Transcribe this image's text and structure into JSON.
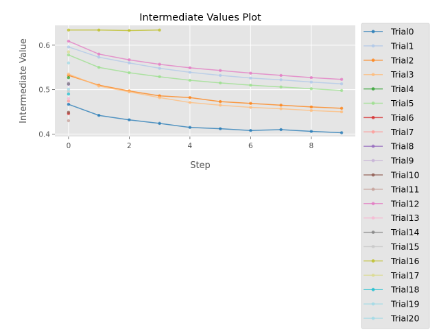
{
  "chart_data": {
    "type": "line",
    "title": "Intermediate Values Plot",
    "xlabel": "Step",
    "ylabel": "Intermediate Value",
    "xlim": [
      -0.45,
      9.45
    ],
    "ylim": [
      0.3945,
      0.6445
    ],
    "xticks": [
      0,
      2,
      4,
      6,
      8
    ],
    "yticks": [
      0.4,
      0.5,
      0.6
    ],
    "ytick_labels": [
      "0.4",
      "0.5",
      "0.6"
    ],
    "grid": true,
    "legend_position": "right, outside plot area",
    "background": "#e5e5e5",
    "series": [
      {
        "name": "Trial0",
        "color": "#1f77b4",
        "x": [
          0,
          1,
          2,
          3,
          4,
          5,
          6,
          7,
          8,
          9
        ],
        "y": [
          0.467,
          0.442,
          0.432,
          0.424,
          0.415,
          0.412,
          0.408,
          0.41,
          0.406,
          0.403
        ]
      },
      {
        "name": "Trial1",
        "color": "#aec7e8",
        "x": [
          0,
          1,
          2,
          3,
          4,
          5,
          6,
          7,
          8,
          9
        ],
        "y": [
          0.596,
          0.573,
          0.56,
          0.548,
          0.539,
          0.532,
          0.526,
          0.522,
          0.517,
          0.513
        ]
      },
      {
        "name": "Trial2",
        "color": "#ff7f0e",
        "x": [
          0,
          1,
          2,
          3,
          4,
          5,
          6,
          7,
          8,
          9
        ],
        "y": [
          0.532,
          0.51,
          0.497,
          0.486,
          0.482,
          0.473,
          0.469,
          0.465,
          0.461,
          0.458
        ]
      },
      {
        "name": "Trial3",
        "color": "#ffbb78",
        "x": [
          0,
          1,
          2,
          3,
          4,
          5,
          6,
          7,
          8,
          9
        ],
        "y": [
          0.535,
          0.508,
          0.495,
          0.482,
          0.471,
          0.465,
          0.46,
          0.457,
          0.453,
          0.45
        ]
      },
      {
        "name": "Trial4",
        "color": "#2ca02c",
        "x": [
          0
        ],
        "y": [
          0.527
        ]
      },
      {
        "name": "Trial5",
        "color": "#98df8a",
        "x": [
          0,
          1,
          2,
          3,
          4,
          5,
          6,
          7,
          8,
          9
        ],
        "y": [
          0.578,
          0.55,
          0.538,
          0.529,
          0.521,
          0.515,
          0.51,
          0.506,
          0.502,
          0.498
        ]
      },
      {
        "name": "Trial6",
        "color": "#d62728",
        "x": [
          0
        ],
        "y": [
          0.446
        ]
      },
      {
        "name": "Trial7",
        "color": "#ff9896",
        "x": [
          0
        ],
        "y": [
          0.474
        ]
      },
      {
        "name": "Trial8",
        "color": "#9467bd",
        "x": [
          0
        ],
        "y": [
          0.512
        ]
      },
      {
        "name": "Trial9",
        "color": "#c5b0d5",
        "x": [
          0
        ],
        "y": [
          0.515
        ]
      },
      {
        "name": "Trial10",
        "color": "#8c564b",
        "x": [
          0
        ],
        "y": [
          0.449
        ]
      },
      {
        "name": "Trial11",
        "color": "#c49c94",
        "x": [
          0
        ],
        "y": [
          0.43
        ]
      },
      {
        "name": "Trial12",
        "color": "#e377c2",
        "x": [
          0,
          1,
          2,
          3,
          4,
          5,
          6,
          7,
          8,
          9
        ],
        "y": [
          0.609,
          0.58,
          0.567,
          0.557,
          0.549,
          0.543,
          0.537,
          0.532,
          0.527,
          0.523
        ]
      },
      {
        "name": "Trial13",
        "color": "#f7b6d2",
        "x": [
          0
        ],
        "y": [
          0.48
        ]
      },
      {
        "name": "Trial14",
        "color": "#7f7f7f",
        "x": [
          0
        ],
        "y": [
          0.513
        ]
      },
      {
        "name": "Trial15",
        "color": "#c7c7c7",
        "x": [
          0
        ],
        "y": [
          0.496
        ]
      },
      {
        "name": "Trial16",
        "color": "#bcbd22",
        "x": [
          0,
          1,
          2,
          3
        ],
        "y": [
          0.634,
          0.634,
          0.633,
          0.634
        ]
      },
      {
        "name": "Trial17",
        "color": "#dbdb8d",
        "x": [
          0
        ],
        "y": [
          0.585
        ]
      },
      {
        "name": "Trial18",
        "color": "#17becf",
        "x": [
          0
        ],
        "y": [
          0.49
        ]
      },
      {
        "name": "Trial19",
        "color": "#9edae5",
        "x": [
          0
        ],
        "y": [
          0.56
        ]
      },
      {
        "name": "Trial20",
        "color": "#9edae5",
        "x": [
          0
        ],
        "y": [
          0.501
        ]
      }
    ]
  }
}
